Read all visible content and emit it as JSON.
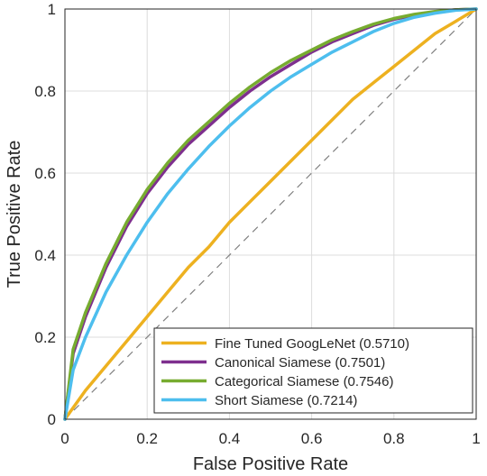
{
  "chart_data": {
    "type": "line",
    "title": "",
    "xlabel": "False Positive Rate",
    "ylabel": "True Positive Rate",
    "xlim": [
      0,
      1
    ],
    "ylim": [
      0,
      1
    ],
    "xticks": [
      "0",
      "0.2",
      "0.4",
      "0.6",
      "0.8",
      "1"
    ],
    "yticks": [
      "0",
      "0.2",
      "0.4",
      "0.6",
      "0.8",
      "1"
    ],
    "grid": true,
    "legend_position": "bottom-right",
    "reference_line": {
      "style": "dashed",
      "color": "#808080",
      "x": [
        0,
        1
      ],
      "y": [
        0,
        1
      ]
    },
    "series": [
      {
        "name": "Fine Tuned GoogLeNet (0.5710)",
        "color": "#EDB120",
        "x": [
          0,
          0.05,
          0.1,
          0.15,
          0.2,
          0.25,
          0.3,
          0.35,
          0.4,
          0.45,
          0.5,
          0.55,
          0.6,
          0.65,
          0.7,
          0.75,
          0.8,
          0.85,
          0.9,
          0.95,
          1
        ],
        "y": [
          0,
          0.07,
          0.13,
          0.19,
          0.25,
          0.31,
          0.37,
          0.42,
          0.48,
          0.53,
          0.58,
          0.63,
          0.68,
          0.73,
          0.78,
          0.82,
          0.86,
          0.9,
          0.94,
          0.97,
          1
        ]
      },
      {
        "name": "Canonical Siamese (0.7501)",
        "color": "#7E2F8E",
        "x": [
          0,
          0.02,
          0.05,
          0.1,
          0.15,
          0.2,
          0.25,
          0.3,
          0.35,
          0.4,
          0.45,
          0.5,
          0.55,
          0.6,
          0.65,
          0.7,
          0.75,
          0.8,
          0.85,
          0.9,
          0.95,
          1
        ],
        "y": [
          0,
          0.16,
          0.25,
          0.37,
          0.47,
          0.55,
          0.615,
          0.67,
          0.715,
          0.76,
          0.8,
          0.835,
          0.865,
          0.895,
          0.92,
          0.94,
          0.96,
          0.975,
          0.985,
          0.993,
          0.998,
          1
        ]
      },
      {
        "name": "Categorical Siamese (0.7546)",
        "color": "#77AC30",
        "x": [
          0,
          0.02,
          0.05,
          0.1,
          0.15,
          0.2,
          0.25,
          0.3,
          0.35,
          0.4,
          0.45,
          0.5,
          0.55,
          0.6,
          0.65,
          0.7,
          0.75,
          0.8,
          0.85,
          0.9,
          0.95,
          1
        ],
        "y": [
          0,
          0.17,
          0.26,
          0.38,
          0.48,
          0.56,
          0.625,
          0.68,
          0.725,
          0.77,
          0.81,
          0.845,
          0.875,
          0.9,
          0.925,
          0.945,
          0.963,
          0.977,
          0.987,
          0.994,
          0.998,
          1
        ]
      },
      {
        "name": "Short Siamese (0.7214)",
        "color": "#4DBEEE",
        "x": [
          0,
          0.02,
          0.05,
          0.1,
          0.15,
          0.2,
          0.25,
          0.3,
          0.35,
          0.4,
          0.45,
          0.5,
          0.55,
          0.6,
          0.65,
          0.7,
          0.75,
          0.8,
          0.85,
          0.9,
          0.95,
          1
        ],
        "y": [
          0,
          0.12,
          0.2,
          0.31,
          0.4,
          0.48,
          0.55,
          0.61,
          0.665,
          0.715,
          0.76,
          0.8,
          0.835,
          0.865,
          0.895,
          0.92,
          0.945,
          0.965,
          0.98,
          0.99,
          0.997,
          1
        ]
      }
    ]
  }
}
